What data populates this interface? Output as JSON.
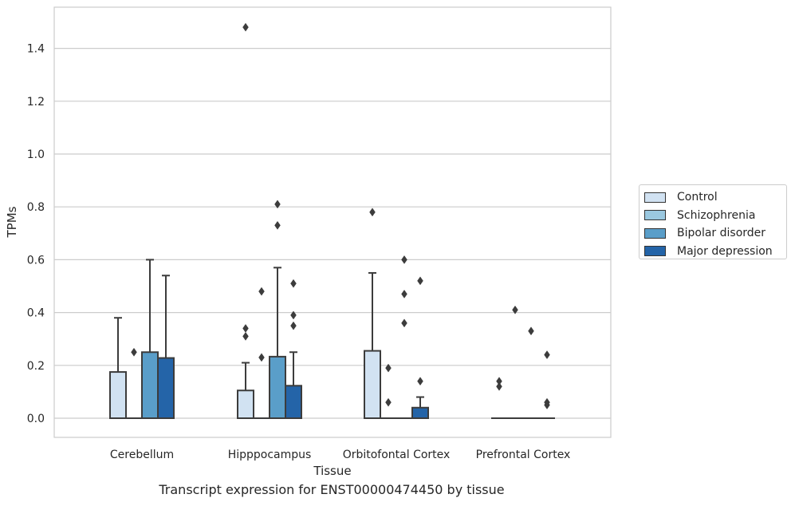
{
  "colors": {
    "Control": "#d1e2f2",
    "Schizophrenia": "#9ac8e0",
    "Bipolar disorder": "#5a9ec9",
    "Major depression": "#2464a8",
    "box_edge": "#3c3c3c",
    "grid": "#cccccc",
    "frame": "#cccccc"
  },
  "caption": "Transcript expression for ENST00000474450 by tissue",
  "chart_data": {
    "type": "box",
    "title": "",
    "xlabel": "Tissue",
    "ylabel": "TPMs",
    "ylim": [
      -0.07,
      1.555
    ],
    "yticks": [
      "0.0",
      "0.2",
      "0.4",
      "0.6",
      "0.8",
      "1.0",
      "1.2",
      "1.4"
    ],
    "grid": "horizontal",
    "legend_position": "right",
    "categories": [
      "Cerebellum",
      "Hipppocampus",
      "Orbitofontal Cortex",
      "Prefrontal Cortex"
    ],
    "series": [
      {
        "name": "Control",
        "boxes": [
          {
            "whislo": 0.0,
            "q1": 0.0,
            "med": 0.0,
            "q3": 0.175,
            "whishi": 0.38,
            "fliers": []
          },
          {
            "whislo": 0.0,
            "q1": 0.0,
            "med": 0.0,
            "q3": 0.105,
            "whishi": 0.21,
            "fliers": [
              0.31,
              0.34,
              1.48
            ]
          },
          {
            "whislo": 0.0,
            "q1": 0.0,
            "med": 0.0,
            "q3": 0.255,
            "whishi": 0.55,
            "fliers": [
              0.78
            ]
          },
          {
            "whislo": 0.0,
            "q1": 0.0,
            "med": 0.0,
            "q3": 0.0,
            "whishi": 0.0,
            "fliers": [
              0.12,
              0.14
            ]
          }
        ]
      },
      {
        "name": "Schizophrenia",
        "boxes": [
          {
            "whislo": 0.0,
            "q1": 0.0,
            "med": 0.0,
            "q3": 0.0,
            "whishi": 0.0,
            "fliers": [
              0.25
            ]
          },
          {
            "whislo": 0.0,
            "q1": 0.0,
            "med": 0.0,
            "q3": 0.0,
            "whishi": 0.0,
            "fliers": [
              0.23,
              0.48
            ]
          },
          {
            "whislo": 0.0,
            "q1": 0.0,
            "med": 0.0,
            "q3": 0.0,
            "whishi": 0.0,
            "fliers": [
              0.06,
              0.19
            ]
          },
          {
            "whislo": 0.0,
            "q1": 0.0,
            "med": 0.0,
            "q3": 0.0,
            "whishi": 0.0,
            "fliers": [
              0.41
            ]
          }
        ]
      },
      {
        "name": "Bipolar disorder",
        "boxes": [
          {
            "whislo": 0.0,
            "q1": 0.0,
            "med": 0.0,
            "q3": 0.25,
            "whishi": 0.6,
            "fliers": []
          },
          {
            "whislo": 0.0,
            "q1": 0.0,
            "med": 0.0,
            "q3": 0.233,
            "whishi": 0.57,
            "fliers": [
              0.73,
              0.81
            ]
          },
          {
            "whislo": 0.0,
            "q1": 0.0,
            "med": 0.0,
            "q3": 0.0,
            "whishi": 0.0,
            "fliers": [
              0.36,
              0.47,
              0.6
            ]
          },
          {
            "whislo": 0.0,
            "q1": 0.0,
            "med": 0.0,
            "q3": 0.0,
            "whishi": 0.0,
            "fliers": [
              0.33
            ]
          }
        ]
      },
      {
        "name": "Major depression",
        "boxes": [
          {
            "whislo": 0.0,
            "q1": 0.0,
            "med": 0.0,
            "q3": 0.228,
            "whishi": 0.54,
            "fliers": []
          },
          {
            "whislo": 0.0,
            "q1": 0.0,
            "med": 0.0,
            "q3": 0.123,
            "whishi": 0.25,
            "fliers": [
              0.35,
              0.39,
              0.51
            ]
          },
          {
            "whislo": 0.0,
            "q1": 0.0,
            "med": 0.0,
            "q3": 0.04,
            "whishi": 0.08,
            "fliers": [
              0.14,
              0.52
            ]
          },
          {
            "whislo": 0.0,
            "q1": 0.0,
            "med": 0.0,
            "q3": 0.0,
            "whishi": 0.0,
            "fliers": [
              0.05,
              0.06,
              0.24
            ]
          }
        ]
      }
    ]
  }
}
